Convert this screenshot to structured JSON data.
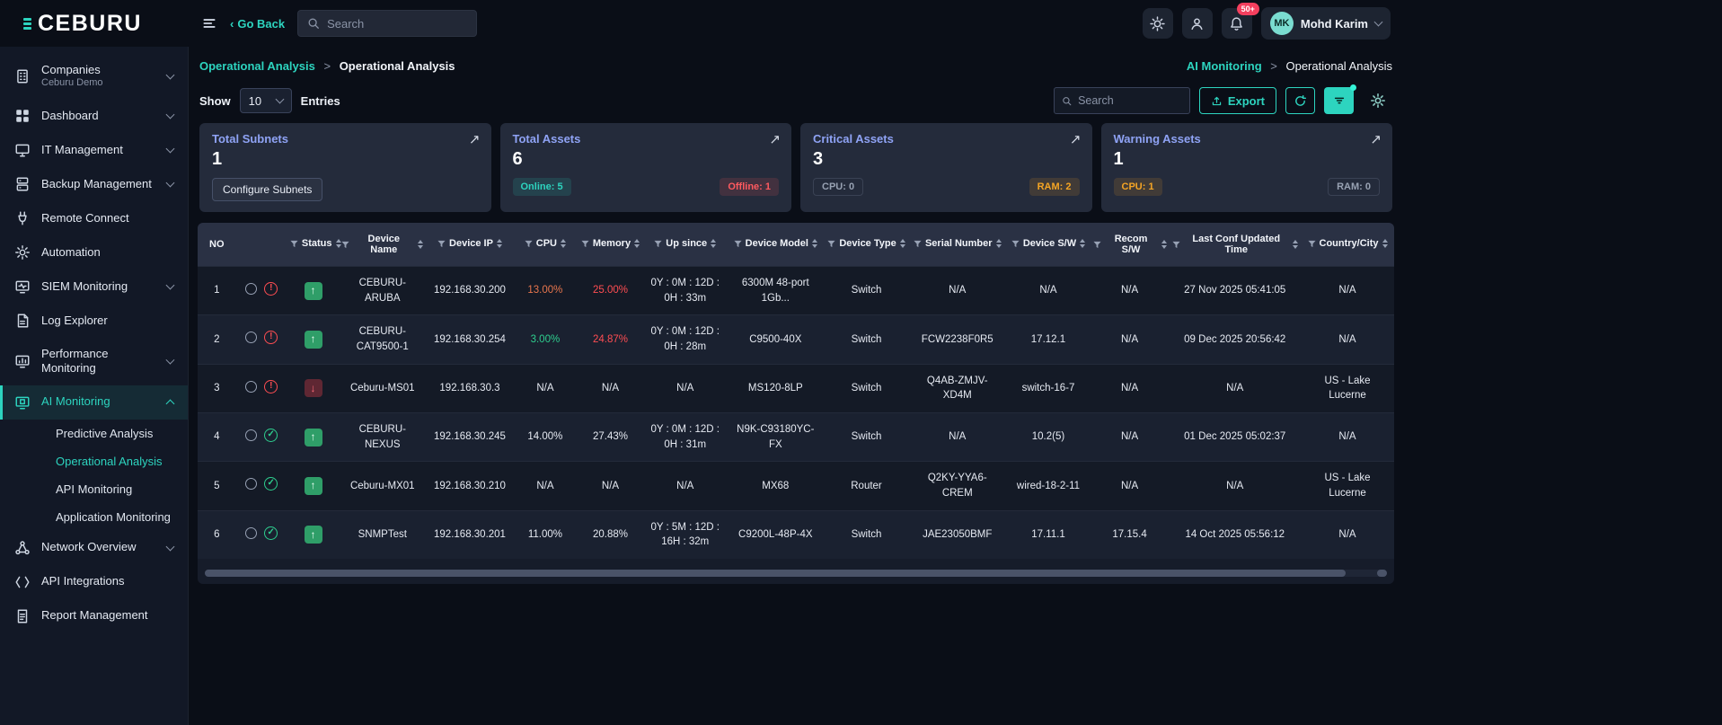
{
  "topbar": {
    "logo": "CEBURU",
    "back_chevron": "‹",
    "back_label": "Go Back",
    "search_placeholder": "Search",
    "notification_badge": "50+",
    "user": {
      "initials": "MK",
      "name": "Mohd Karim"
    }
  },
  "breadcrumbs": {
    "left": {
      "parent": "Operational Analysis",
      "separator": ">",
      "current": "Operational Analysis"
    },
    "right": {
      "parent": "AI Monitoring",
      "separator": ">",
      "current": "Operational Analysis"
    }
  },
  "controls": {
    "show_label": "Show",
    "page_size": "10",
    "entries_label": "Entries",
    "search_placeholder": "Search",
    "export_label": "Export"
  },
  "icons": {
    "expand": "↗",
    "alert": "!",
    "check": "✓",
    "arrow_up": "↑",
    "arrow_down": "↓"
  },
  "colors": {
    "accent": "#2dd4bf",
    "red": "#ff4d52",
    "green": "#2ecf8f",
    "orange": "#e8764d",
    "warning": "#f5a524",
    "card_title": "#8fa3f5"
  },
  "cards": [
    {
      "title": "Total Subnets",
      "value": "1",
      "button": "Configure Subnets"
    },
    {
      "title": "Total Assets",
      "value": "6",
      "badge_left": "Online: 5",
      "badge_right": "Offline: 1"
    },
    {
      "title": "Critical Assets",
      "value": "3",
      "badge_left": "CPU: 0",
      "badge_right": "RAM: 2"
    },
    {
      "title": "Warning Assets",
      "value": "1",
      "badge_left": "CPU: 1",
      "badge_right": "RAM: 0"
    }
  ],
  "sidebar": {
    "items": [
      {
        "label": "Companies",
        "sublabel": "Ceburu Demo",
        "icon": "companies-icon",
        "chevron": "down"
      },
      {
        "label": "Dashboard",
        "icon": "dashboard-icon",
        "chevron": "down"
      },
      {
        "label": "IT Management",
        "icon": "it-management-icon",
        "chevron": "down"
      },
      {
        "label": "Backup Management",
        "icon": "backup-management-icon",
        "chevron": "down"
      },
      {
        "label": "Remote Connect",
        "icon": "remote-connect-icon"
      },
      {
        "label": "Automation",
        "icon": "automation-icon"
      },
      {
        "label": "SIEM Monitoring",
        "icon": "siem-monitoring-icon",
        "chevron": "down"
      },
      {
        "label": "Log Explorer",
        "icon": "log-explorer-icon"
      },
      {
        "label": "Performance Monitoring",
        "icon": "performance-monitoring-icon",
        "chevron": "down"
      },
      {
        "label": "AI Monitoring",
        "icon": "ai-monitoring-icon",
        "chevron": "up",
        "active": true,
        "children": [
          {
            "label": "Predictive Analysis"
          },
          {
            "label": "Operational Analysis",
            "active": true
          },
          {
            "label": "API Monitoring"
          },
          {
            "label": "Application Monitoring"
          }
        ]
      },
      {
        "label": "Network Overview",
        "icon": "network-overview-icon",
        "chevron": "down"
      },
      {
        "label": "API Integrations",
        "icon": "api-integrations-icon"
      },
      {
        "label": "Report Management",
        "icon": "report-management-icon"
      }
    ]
  },
  "table": {
    "columns": [
      {
        "key": "no",
        "label": "NO",
        "sortable": false
      },
      {
        "key": "select",
        "label": "",
        "sortable": false
      },
      {
        "key": "status",
        "label": "Status",
        "sortable": true
      },
      {
        "key": "device_name",
        "label": "Device Name",
        "sortable": true
      },
      {
        "key": "device_ip",
        "label": "Device IP",
        "sortable": true
      },
      {
        "key": "cpu",
        "label": "CPU",
        "sortable": true
      },
      {
        "key": "memory",
        "label": "Memory",
        "sortable": true
      },
      {
        "key": "up_since",
        "label": "Up since",
        "sortable": true
      },
      {
        "key": "device_model",
        "label": "Device Model",
        "sortable": true
      },
      {
        "key": "device_type",
        "label": "Device Type",
        "sortable": true
      },
      {
        "key": "serial_number",
        "label": "Serial Number",
        "sortable": true
      },
      {
        "key": "device_sw",
        "label": "Device S/W",
        "sortable": true
      },
      {
        "key": "recom_sw",
        "label": "Recom S/W",
        "sortable": true
      },
      {
        "key": "last_conf",
        "label": "Last Conf Updated Time",
        "sortable": true
      },
      {
        "key": "country_city",
        "label": "Country/City",
        "sortable": true
      }
    ],
    "rows": [
      {
        "no": "1",
        "alert": "error",
        "status": "up",
        "device_name": "CEBURU-ARUBA",
        "device_ip": "192.168.30.200",
        "cpu": "13.00%",
        "cpu_color": "orange",
        "memory": "25.00%",
        "memory_color": "red",
        "up_since": "0Y : 0M : 12D : 0H : 33m",
        "device_model": "6300M 48-port 1Gb...",
        "device_type": "Switch",
        "serial_number": "N/A",
        "device_sw": "N/A",
        "recom_sw": "N/A",
        "last_conf": "27 Nov 2025 05:41:05",
        "country_city": "N/A"
      },
      {
        "no": "2",
        "alert": "error",
        "status": "up",
        "device_name": "CEBURU-CAT9500-1",
        "device_ip": "192.168.30.254",
        "cpu": "3.00%",
        "cpu_color": "green",
        "memory": "24.87%",
        "memory_color": "red",
        "up_since": "0Y : 0M : 12D : 0H : 28m",
        "device_model": "C9500-40X",
        "device_type": "Switch",
        "serial_number": "FCW2238F0R5",
        "device_sw": "17.12.1",
        "recom_sw": "N/A",
        "last_conf": "09 Dec 2025 20:56:42",
        "country_city": "N/A"
      },
      {
        "no": "3",
        "alert": "error",
        "status": "down",
        "device_name": "Ceburu-MS01",
        "device_ip": "192.168.30.3",
        "cpu": "N/A",
        "memory": "N/A",
        "up_since": "N/A",
        "device_model": "MS120-8LP",
        "device_type": "Switch",
        "serial_number": "Q4AB-ZMJV-XD4M",
        "device_sw": "switch-16-7",
        "recom_sw": "N/A",
        "last_conf": "N/A",
        "country_city": "US - Lake Lucerne"
      },
      {
        "no": "4",
        "alert": "ok",
        "status": "up",
        "device_name": "CEBURU-NEXUS",
        "device_ip": "192.168.30.245",
        "cpu": "14.00%",
        "memory": "27.43%",
        "up_since": "0Y : 0M : 12D : 0H : 31m",
        "device_model": "N9K-C93180YC-FX",
        "device_type": "Switch",
        "serial_number": "N/A",
        "device_sw": "10.2(5)",
        "recom_sw": "N/A",
        "last_conf": "01 Dec 2025 05:02:37",
        "country_city": "N/A"
      },
      {
        "no": "5",
        "alert": "ok",
        "status": "up",
        "device_name": "Ceburu-MX01",
        "device_ip": "192.168.30.210",
        "cpu": "N/A",
        "memory": "N/A",
        "up_since": "N/A",
        "device_model": "MX68",
        "device_type": "Router",
        "serial_number": "Q2KY-YYA6-CREM",
        "device_sw": "wired-18-2-11",
        "recom_sw": "N/A",
        "last_conf": "N/A",
        "country_city": "US - Lake Lucerne"
      },
      {
        "no": "6",
        "alert": "ok",
        "status": "up",
        "device_name": "SNMPTest",
        "device_ip": "192.168.30.201",
        "cpu": "11.00%",
        "memory": "20.88%",
        "up_since": "0Y : 5M : 12D : 16H : 32m",
        "device_model": "C9200L-48P-4X",
        "device_type": "Switch",
        "serial_number": "JAE23050BMF",
        "device_sw": "17.11.1",
        "recom_sw": "17.15.4",
        "last_conf": "14 Oct 2025 05:56:12",
        "country_city": "N/A"
      }
    ]
  }
}
